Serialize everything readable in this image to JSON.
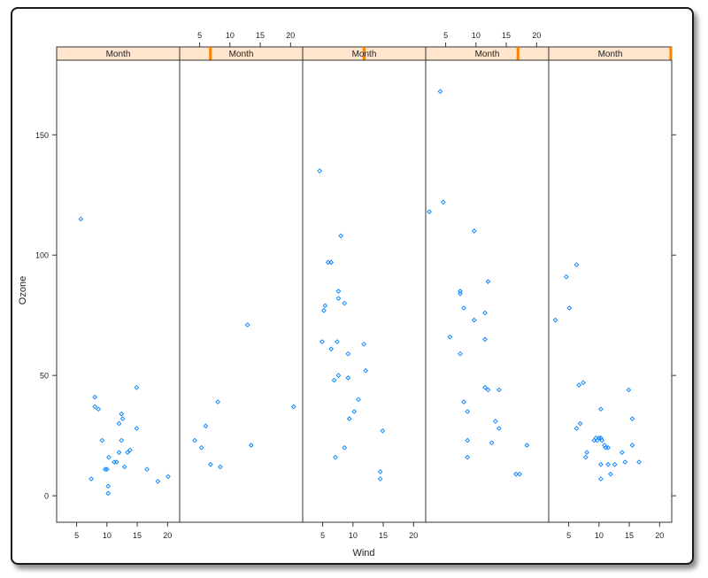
{
  "chart_data": {
    "type": "scatter",
    "xlabel": "Wind",
    "ylabel": "Ozone",
    "strip_label": "Month",
    "xlim": [
      1.7,
      22
    ],
    "ylim": [
      -11,
      181
    ],
    "x_ticks": [
      5,
      10,
      15,
      20
    ],
    "y_ticks": [
      0,
      50,
      100,
      150
    ],
    "strip_color": "#ffe5cc",
    "marker_color": "#0080ff",
    "indicator_color": "#ff7f00",
    "panels": [
      {
        "month_indicator": null,
        "points": [
          [
            5.7,
            115
          ],
          [
            7.4,
            7
          ],
          [
            8.0,
            41
          ],
          [
            8.0,
            37
          ],
          [
            8.6,
            36
          ],
          [
            9.2,
            23
          ],
          [
            9.7,
            11
          ],
          [
            10.0,
            11
          ],
          [
            10.2,
            4
          ],
          [
            10.2,
            1
          ],
          [
            10.3,
            16
          ],
          [
            11.2,
            14
          ],
          [
            11.6,
            14
          ],
          [
            12.0,
            30
          ],
          [
            12.0,
            18
          ],
          [
            12.4,
            23
          ],
          [
            12.4,
            34
          ],
          [
            12.6,
            32
          ],
          [
            12.9,
            12
          ],
          [
            13.4,
            18
          ],
          [
            13.8,
            19
          ],
          [
            14.9,
            28
          ],
          [
            14.9,
            45
          ],
          [
            16.6,
            11
          ],
          [
            18.4,
            6
          ],
          [
            20.1,
            8
          ]
        ]
      },
      {
        "month_indicator": 0.25,
        "points": [
          [
            4.2,
            23
          ],
          [
            5.3,
            20
          ],
          [
            6.0,
            29
          ],
          [
            6.8,
            13
          ],
          [
            8.0,
            39
          ],
          [
            8.4,
            12
          ],
          [
            12.9,
            71
          ],
          [
            13.5,
            21
          ],
          [
            20.5,
            37
          ]
        ]
      },
      {
        "month_indicator": 0.5,
        "points": [
          [
            4.5,
            135
          ],
          [
            4.9,
            64
          ],
          [
            5.2,
            77
          ],
          [
            5.4,
            79
          ],
          [
            5.9,
            97
          ],
          [
            6.4,
            97
          ],
          [
            6.4,
            61
          ],
          [
            6.9,
            48
          ],
          [
            7.1,
            16
          ],
          [
            7.4,
            64
          ],
          [
            7.6,
            50
          ],
          [
            7.6,
            82
          ],
          [
            7.6,
            85
          ],
          [
            8.0,
            108
          ],
          [
            8.6,
            20
          ],
          [
            8.6,
            80
          ],
          [
            9.2,
            49
          ],
          [
            9.2,
            59
          ],
          [
            9.4,
            32
          ],
          [
            10.2,
            35
          ],
          [
            10.9,
            40
          ],
          [
            11.8,
            63
          ],
          [
            12.1,
            52
          ],
          [
            14.5,
            10
          ],
          [
            14.5,
            7
          ],
          [
            14.9,
            27
          ]
        ]
      },
      {
        "month_indicator": 0.75,
        "points": [
          [
            2.3,
            118
          ],
          [
            4.1,
            168
          ],
          [
            4.6,
            122
          ],
          [
            5.7,
            66
          ],
          [
            7.4,
            59
          ],
          [
            7.4,
            84
          ],
          [
            7.4,
            85
          ],
          [
            8.0,
            78
          ],
          [
            8.0,
            39
          ],
          [
            8.6,
            35
          ],
          [
            8.6,
            23
          ],
          [
            8.6,
            16
          ],
          [
            9.7,
            73
          ],
          [
            9.7,
            110
          ],
          [
            11.5,
            65
          ],
          [
            11.5,
            45
          ],
          [
            11.5,
            76
          ],
          [
            12.0,
            44
          ],
          [
            12.0,
            89
          ],
          [
            12.6,
            22
          ],
          [
            13.2,
            31
          ],
          [
            13.8,
            28
          ],
          [
            13.8,
            44
          ],
          [
            16.6,
            9
          ],
          [
            17.2,
            9
          ],
          [
            18.4,
            21
          ]
        ]
      },
      {
        "month_indicator": 1,
        "points": [
          [
            2.8,
            73
          ],
          [
            4.6,
            91
          ],
          [
            5.1,
            78
          ],
          [
            6.3,
            28
          ],
          [
            6.3,
            96
          ],
          [
            6.7,
            46
          ],
          [
            6.9,
            30
          ],
          [
            7.4,
            47
          ],
          [
            7.8,
            16
          ],
          [
            8.0,
            18
          ],
          [
            9.2,
            23
          ],
          [
            9.5,
            24
          ],
          [
            9.7,
            23
          ],
          [
            10.0,
            24
          ],
          [
            10.3,
            36
          ],
          [
            10.3,
            7
          ],
          [
            10.3,
            13
          ],
          [
            10.3,
            24
          ],
          [
            10.5,
            23
          ],
          [
            10.9,
            21
          ],
          [
            11.1,
            20
          ],
          [
            11.5,
            13
          ],
          [
            11.5,
            20
          ],
          [
            11.9,
            9
          ],
          [
            12.6,
            13
          ],
          [
            13.8,
            18
          ],
          [
            14.3,
            14
          ],
          [
            14.9,
            44
          ],
          [
            15.5,
            21
          ],
          [
            15.5,
            32
          ],
          [
            16.6,
            14
          ]
        ]
      }
    ]
  }
}
